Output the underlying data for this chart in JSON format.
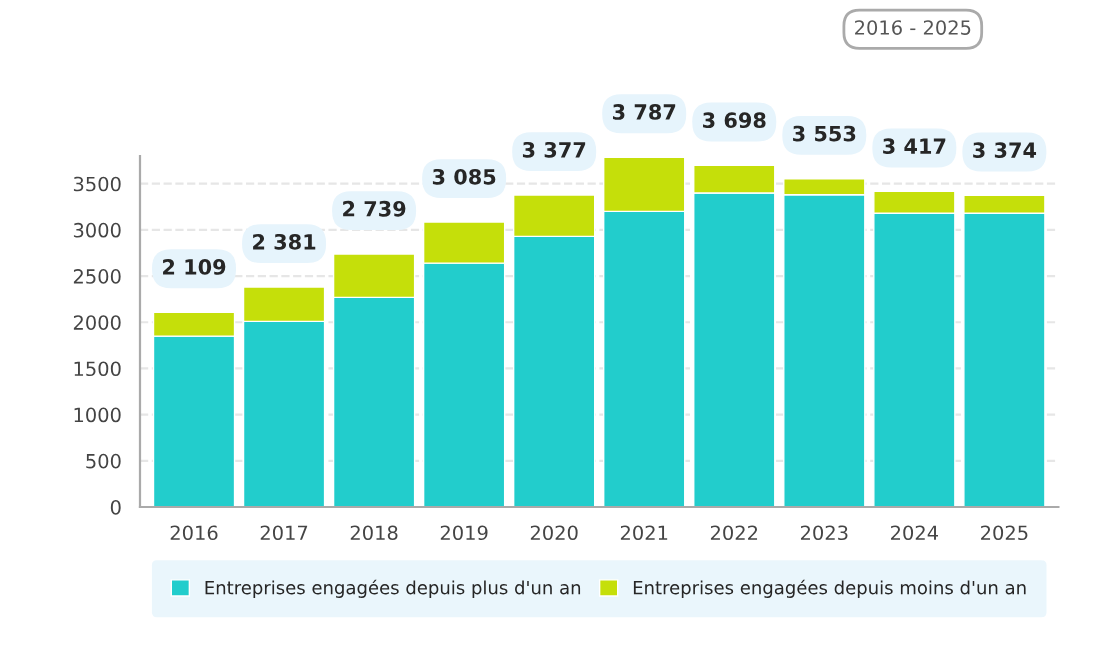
{
  "chart_data": {
    "type": "bar",
    "stacked": true,
    "categories": [
      "2016",
      "2017",
      "2018",
      "2019",
      "2020",
      "2021",
      "2022",
      "2023",
      "2024",
      "2025"
    ],
    "series": [
      {
        "name": "Entreprises engagées depuis plus d'un an",
        "color": "#22cdcc",
        "values": [
          1850,
          2010,
          2270,
          2640,
          2930,
          3200,
          3400,
          3380,
          3180,
          3180
        ]
      },
      {
        "name": "Entreprises engagées depuis moins d'un an",
        "color": "#c5df0a",
        "values": [
          259,
          371,
          469,
          445,
          447,
          587,
          298,
          173,
          237,
          194
        ]
      }
    ],
    "totals": [
      "2 109",
      "2 381",
      "2 739",
      "3 085",
      "3 377",
      "3 787",
      "3 698",
      "3 553",
      "3 417",
      "3 374"
    ],
    "ylim": [
      0,
      3800
    ],
    "yticks": [
      0,
      500,
      1000,
      1500,
      2000,
      2500,
      3000,
      3500
    ],
    "grid": "y",
    "legend": "bottom",
    "annotations": [
      "2016 - 2025"
    ]
  }
}
